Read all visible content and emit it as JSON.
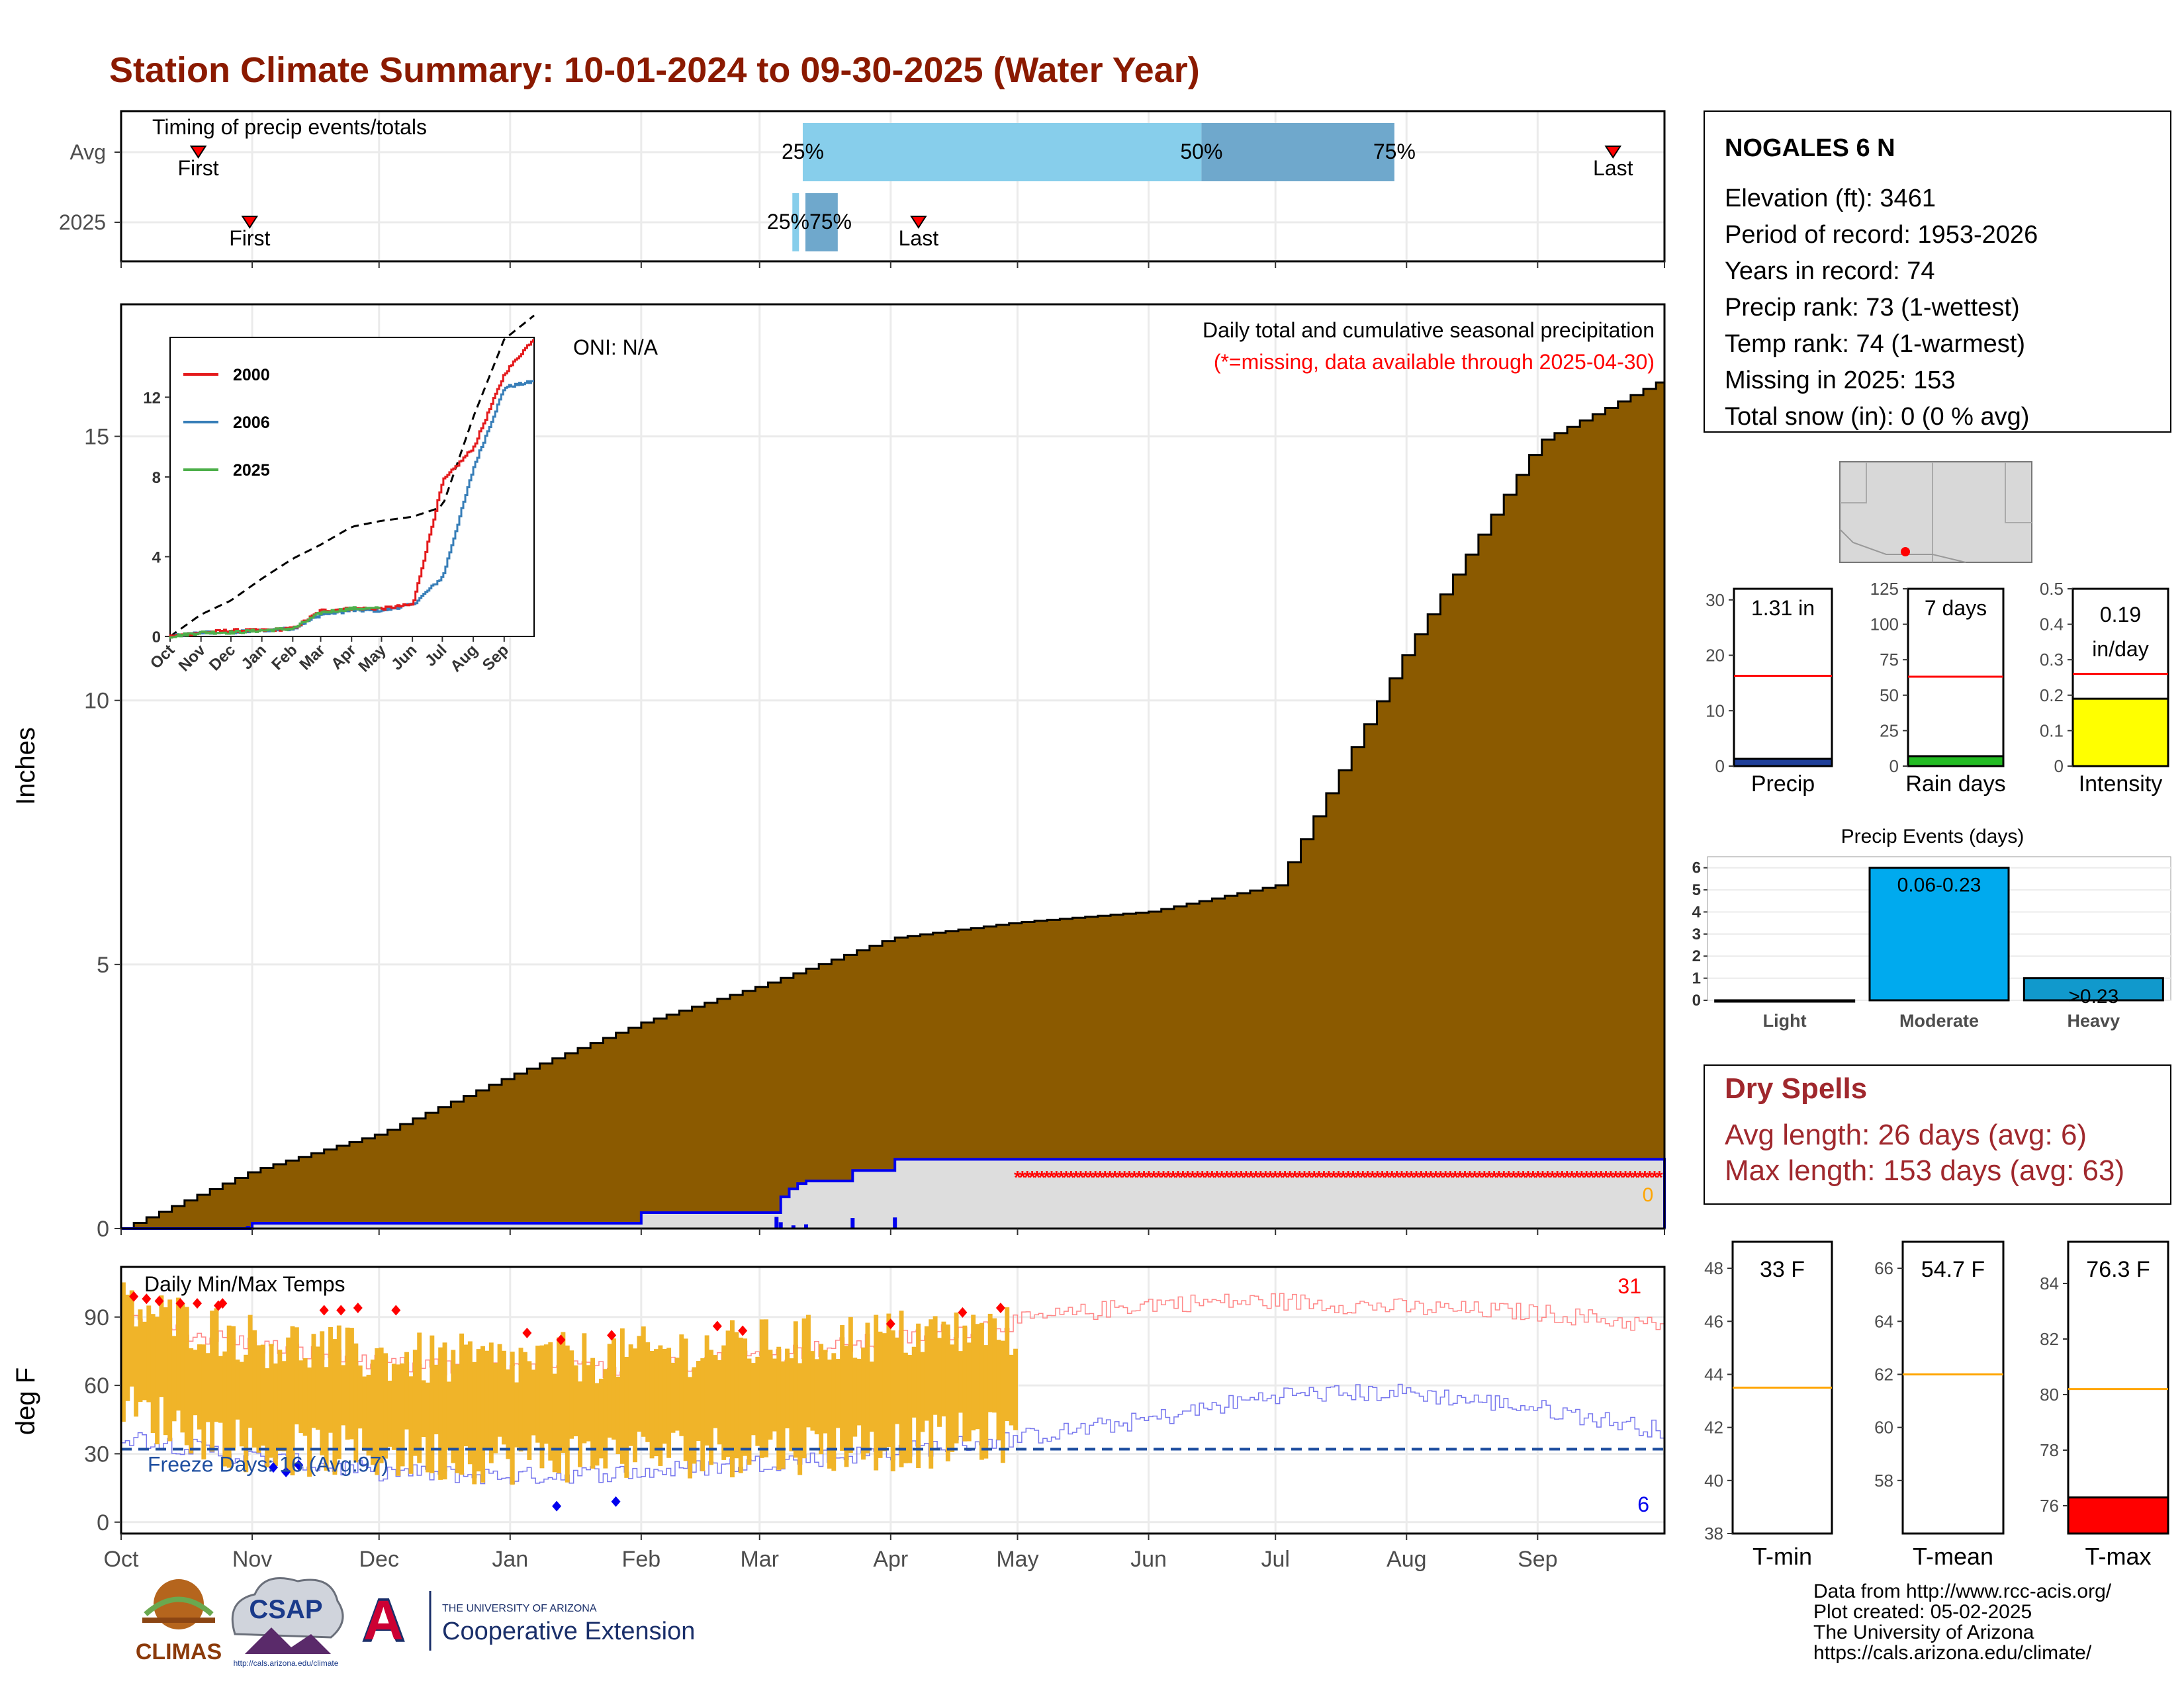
{
  "title": "Station Climate Summary: 10-01-2024 to 09-30-2025 (Water Year)",
  "timing": {
    "label": "Timing of precip events/totals",
    "rows": [
      "Avg",
      "2025"
    ],
    "avg": {
      "first_month": 0.6,
      "last_month": 11.6,
      "p25": 5.3,
      "p50": 8.4,
      "p75": 9.9
    },
    "y2025": {
      "first_month": 1.0,
      "last_month": 6.2,
      "p25": 5.25,
      "p50": 5.3,
      "p75": 5.5
    },
    "first_label": "First",
    "last_label": "Last",
    "p25_label": "25%",
    "p50_label": "50%",
    "p75_label": "75%",
    "y2025_pct_text": "25%75%"
  },
  "station": {
    "name": "NOGALES 6 N",
    "lines": [
      "Elevation (ft): 3461",
      "Period of record: 1953-2026",
      "Years in record: 74",
      "Precip rank: 73 (1-wettest)",
      "Temp rank: 74 (1-warmest)",
      "Missing in 2025: 153",
      "Total snow (in): 0 (0 % avg)"
    ]
  },
  "precip_panel": {
    "ylabel": "Inches",
    "yticks": [
      0,
      5,
      10,
      15
    ],
    "ylim": [
      0,
      17.5
    ],
    "note1": "Daily total and cumulative seasonal precipitation",
    "note2": "(*=missing, data available through 2025-04-30)",
    "oni": "ONI: N/A",
    "zero_label": "0",
    "colors": {
      "cumulative": "#8B5A00",
      "current": "#0000ee",
      "missing": "#ff0000",
      "current_fill": "#dddddd"
    }
  },
  "temp_panel": {
    "ylabel": "deg F",
    "title": "Daily Min/Max Temps",
    "yticks": [
      0,
      30,
      60,
      90
    ],
    "ylim": [
      -5,
      112
    ],
    "freeze_text": "Freeze Days: 16 (Avg:97)",
    "hot_count": "31",
    "cold_count": "6",
    "freeze_line": 32
  },
  "months": [
    "Oct",
    "Nov",
    "Dec",
    "Jan",
    "Feb",
    "Mar",
    "Apr",
    "May",
    "Jun",
    "Jul",
    "Aug",
    "Sep"
  ],
  "inset": {
    "yticks": [
      0,
      4,
      8,
      12
    ],
    "months": [
      "Oct",
      "Nov",
      "Dec",
      "Jan",
      "Feb",
      "Mar",
      "Apr",
      "May",
      "Jun",
      "Jul",
      "Aug",
      "Sep"
    ],
    "legend": [
      {
        "name": "2000",
        "color": "#e41a1c"
      },
      {
        "name": "2006",
        "color": "#377eb8"
      },
      {
        "name": "2025",
        "color": "#4daf4a"
      }
    ]
  },
  "mini_bars": [
    {
      "label": "Precip",
      "value_text": "1.31 in",
      "value": 1.31,
      "avg": 16.3,
      "max": 32,
      "ticks": [
        0,
        10,
        20,
        30
      ],
      "color": "#1f3f99"
    },
    {
      "label": "Rain days",
      "value_text": "7 days",
      "value": 7,
      "avg": 63,
      "max": 125,
      "ticks": [
        0,
        25,
        50,
        75,
        100,
        125
      ],
      "color": "#22bb22"
    },
    {
      "label": "Intensity",
      "value_text": "0.19 in/day",
      "value": 0.19,
      "avg": 0.26,
      "max": 0.5,
      "ticks": [
        0.0,
        0.1,
        0.2,
        0.3,
        0.4,
        0.5
      ],
      "color": "#ffff00"
    }
  ],
  "events": {
    "title": "Precip Events (days)",
    "categories": [
      "Light",
      "Moderate",
      "Heavy"
    ],
    "values": [
      0,
      6,
      1
    ],
    "range_labels": [
      "",
      "0.06-0.23",
      ">0.23"
    ],
    "colors": [
      "#00aaee",
      "#00aaee",
      "#1199cc"
    ],
    "yticks": [
      0,
      1,
      2,
      3,
      4,
      5,
      6
    ]
  },
  "dry_spells": {
    "title": "Dry Spells",
    "line1": "Avg length: 26 days (avg: 6)",
    "line2": "Max length: 153 days (avg: 63)"
  },
  "temp_bars": [
    {
      "label": "T-min",
      "value_text": "33 F",
      "value": 33,
      "avg": 43.5,
      "ymin": 38,
      "ymax": 49,
      "ticks": [
        38,
        40,
        42,
        44,
        46,
        48
      ],
      "color": "#ff0000"
    },
    {
      "label": "T-mean",
      "value_text": "54.7 F",
      "value": 54.7,
      "avg": 62,
      "ymin": 56,
      "ymax": 67,
      "ticks": [
        58,
        60,
        62,
        64,
        66
      ],
      "color": "#ff0000"
    },
    {
      "label": "T-max",
      "value_text": "76.3 F",
      "value": 76.3,
      "avg": 80.2,
      "ymin": 75,
      "ymax": 85.5,
      "ticks": [
        76,
        78,
        80,
        82,
        84
      ],
      "color": "#ff0000"
    }
  ],
  "credits": [
    "Data from http://www.rcc-acis.org/",
    "Plot created: 05-02-2025",
    "The University of Arizona",
    "https://cals.arizona.edu/climate/"
  ],
  "logos": {
    "climas": "CLIMAS",
    "csap": "CSAP",
    "csap_url": "http://cals.arizona.edu/climate",
    "ua_small": "THE UNIVERSITY OF ARIZONA",
    "ua_big": "Cooperative Extension"
  },
  "chart_data": [
    {
      "type": "area",
      "title": "Daily total and cumulative seasonal precipitation",
      "ylabel": "Inches",
      "ylim": [
        0,
        17.5
      ],
      "x": [
        "Oct",
        "Nov",
        "Dec",
        "Jan",
        "Feb",
        "Mar",
        "Apr",
        "May",
        "Jun",
        "Jul",
        "Aug",
        "Sep",
        "Oct-end"
      ],
      "series": [
        {
          "name": "Avg cumulative",
          "values": [
            0,
            1.1,
            1.8,
            2.9,
            3.9,
            4.6,
            5.5,
            5.8,
            6.0,
            6.5,
            11.0,
            14.9,
            16.1
          ]
        },
        {
          "name": "2025 cumulative",
          "values": [
            0,
            0.1,
            0.1,
            0.1,
            0.3,
            0.3,
            0.9,
            1.31,
            null,
            null,
            null,
            null,
            null
          ]
        }
      ]
    },
    {
      "type": "line",
      "title": "Daily Min/Max Temps",
      "ylabel": "deg F",
      "ylim": [
        -5,
        112
      ],
      "x": [
        "Oct",
        "Nov",
        "Dec",
        "Jan",
        "Feb",
        "Mar",
        "Apr",
        "May",
        "Jun",
        "Jul",
        "Aug",
        "Sep",
        "Oct-end"
      ],
      "series": [
        {
          "name": "Avg max",
          "values": [
            88,
            78,
            69,
            66,
            68,
            73,
            80,
            88,
            96,
            97,
            94,
            92,
            86
          ]
        },
        {
          "name": "Avg min",
          "values": [
            38,
            28,
            22,
            20,
            22,
            26,
            31,
            37,
            45,
            56,
            57,
            50,
            40
          ]
        },
        {
          "name": "2025 max",
          "values": [
            95,
            80,
            72,
            70,
            74,
            78,
            82,
            84,
            null,
            null,
            null,
            null,
            null
          ]
        },
        {
          "name": "2025 min",
          "values": [
            50,
            32,
            30,
            28,
            30,
            32,
            34,
            38,
            null,
            null,
            null,
            null,
            null
          ]
        }
      ]
    },
    {
      "type": "bar",
      "title": "Precip Events (days)",
      "categories": [
        "Light",
        "Moderate",
        "Heavy"
      ],
      "values": [
        0,
        6,
        1
      ]
    }
  ]
}
